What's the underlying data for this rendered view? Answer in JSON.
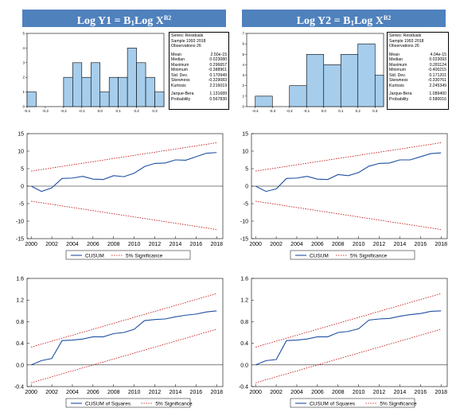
{
  "histograms": [
    {
      "title_prefix": "Log Y1 = B",
      "title_sub": "1",
      "title_mid": "Log X",
      "title_sup": "B2",
      "stats": {
        "header": [
          "Series: Residuals",
          "Sample 1993 2018",
          "Observations 26"
        ],
        "rows": [
          [
            "Mean",
            "2.50e-15"
          ],
          [
            "Median",
            "0.023080"
          ],
          [
            "Maximum",
            "0.296657"
          ],
          [
            "Minimum",
            "-0.388961"
          ],
          [
            "Std. Dev.",
            "0.170949"
          ],
          [
            "Skewness",
            "-0.329083"
          ],
          [
            "Kurtosis",
            "2.216019"
          ]
        ],
        "tail": [
          [
            "Jarque-Bera",
            "1.131689"
          ],
          [
            "Probability",
            "0.567830"
          ]
        ]
      }
    },
    {
      "title_prefix": "Log Y2 = B",
      "title_sub": "1",
      "title_mid": "Log X",
      "title_sup": "B2",
      "stats": {
        "header": [
          "Series: Residuals",
          "Sample 1993 2018",
          "Observations 26"
        ],
        "rows": [
          [
            "Mean",
            "4.04e-15"
          ],
          [
            "Median",
            "0.023093"
          ],
          [
            "Maximum",
            "0.281124"
          ],
          [
            "Minimum",
            "-0.400215"
          ],
          [
            "Std. Dev.",
            "0.171201"
          ],
          [
            "Skewness",
            "-0.330761"
          ],
          [
            "Kurtosis",
            "2.245349"
          ]
        ],
        "tail": [
          [
            "Jarque-Bera",
            "1.089400"
          ],
          [
            "Probability",
            "0.580016"
          ]
        ]
      }
    }
  ],
  "legends": {
    "cusum": "CUSUM",
    "cusumsq": "CUSUM of Squares",
    "sig": "5% Significance"
  },
  "colors": {
    "title_bg": "#4f81bd",
    "bar_fill": "#a6cdec",
    "line": "#1f4fa3",
    "bound": "#c00000"
  },
  "chart_data": [
    {
      "type": "bar",
      "bin_edges": [
        -0.4,
        -0.35,
        -0.3,
        -0.25,
        -0.2,
        -0.15,
        -0.1,
        -0.05,
        0.0,
        0.05,
        0.1,
        0.15,
        0.2,
        0.25,
        0.3
      ],
      "values": [
        1,
        0,
        0,
        0,
        2,
        3,
        2,
        3,
        1,
        2,
        2,
        4,
        3,
        2,
        1
      ],
      "xticks": [
        "-0.4",
        "-0.3",
        "-0.2",
        "-0.1",
        "0.0",
        "0.1",
        "0.2",
        "0.3"
      ],
      "xtick_values": [
        -0.4,
        -0.3,
        -0.2,
        -0.1,
        0.0,
        0.1,
        0.2,
        0.3
      ],
      "yticks": [
        "0",
        "1",
        "2",
        "3",
        "4",
        "5"
      ],
      "xlim": [
        -0.4,
        0.35
      ],
      "ylim": [
        0,
        5
      ]
    },
    {
      "type": "bar",
      "bin_edges": [
        -0.4,
        -0.3,
        -0.2,
        -0.1,
        0.0,
        0.1,
        0.2,
        0.3
      ],
      "values": [
        1,
        0,
        2,
        5,
        4,
        5,
        6,
        3
      ],
      "xticks": [
        "-0.4",
        "-0.3",
        "-0.2",
        "-0.1",
        "0.0",
        "0.1",
        "0.2",
        "0.3"
      ],
      "xtick_values": [
        -0.4,
        -0.3,
        -0.2,
        -0.1,
        0.0,
        0.1,
        0.2,
        0.3
      ],
      "yticks": [
        "0",
        "1",
        "2",
        "3",
        "4",
        "5",
        "6",
        "7"
      ],
      "xlim": [
        -0.45,
        0.35
      ],
      "ylim": [
        0,
        7
      ]
    },
    {
      "type": "line",
      "x": [
        2000,
        2001,
        2002,
        2003,
        2004,
        2005,
        2006,
        2007,
        2008,
        2009,
        2010,
        2011,
        2012,
        2013,
        2014,
        2015,
        2016,
        2017,
        2018
      ],
      "series": [
        {
          "name": "CUSUM",
          "values": [
            0,
            -1.5,
            -0.5,
            2.2,
            2.3,
            2.8,
            2.0,
            1.9,
            3.0,
            2.7,
            3.7,
            5.6,
            6.5,
            6.6,
            7.5,
            7.4,
            8.4,
            9.4,
            9.6
          ]
        },
        {
          "name": "5% Significance",
          "values": [
            4.3,
            4.75,
            5.2,
            5.65,
            6.1,
            6.55,
            7.0,
            7.45,
            7.9,
            8.35,
            8.8,
            9.25,
            9.7,
            10.15,
            10.6,
            11.05,
            11.5,
            11.95,
            12.4
          ]
        },
        {
          "name": "5% Significance",
          "values": [
            -4.3,
            -4.75,
            -5.2,
            -5.65,
            -6.1,
            -6.55,
            -7.0,
            -7.45,
            -7.9,
            -8.35,
            -8.8,
            -9.25,
            -9.7,
            -10.15,
            -10.6,
            -11.05,
            -11.5,
            -11.95,
            -12.4
          ]
        }
      ],
      "xticks": [
        "2000",
        "2002",
        "2004",
        "2006",
        "2008",
        "2010",
        "2012",
        "2014",
        "2016",
        "2018"
      ],
      "yticks": [
        "-15",
        "-10",
        "-5",
        "0",
        "5",
        "10",
        "15"
      ],
      "xlim": [
        1999.6,
        2018.6
      ],
      "ylim": [
        -15,
        15
      ]
    },
    {
      "type": "line",
      "x": [
        2000,
        2001,
        2002,
        2003,
        2004,
        2005,
        2006,
        2007,
        2008,
        2009,
        2010,
        2011,
        2012,
        2013,
        2014,
        2015,
        2016,
        2017,
        2018
      ],
      "series": [
        {
          "name": "CUSUM",
          "values": [
            0,
            -1.5,
            -0.8,
            2.2,
            2.3,
            2.8,
            2.0,
            1.9,
            3.3,
            3.0,
            3.9,
            5.7,
            6.5,
            6.6,
            7.5,
            7.5,
            8.4,
            9.3,
            9.5
          ]
        },
        {
          "name": "5% Significance",
          "values": [
            4.3,
            4.75,
            5.2,
            5.65,
            6.1,
            6.55,
            7.0,
            7.45,
            7.9,
            8.35,
            8.8,
            9.25,
            9.7,
            10.15,
            10.6,
            11.05,
            11.5,
            11.95,
            12.4
          ]
        },
        {
          "name": "5% Significance",
          "values": [
            -4.3,
            -4.75,
            -5.2,
            -5.65,
            -6.1,
            -6.55,
            -7.0,
            -7.45,
            -7.9,
            -8.35,
            -8.8,
            -9.25,
            -9.7,
            -10.15,
            -10.6,
            -11.05,
            -11.5,
            -11.95,
            -12.4
          ]
        }
      ],
      "xticks": [
        "2000",
        "2002",
        "2004",
        "2006",
        "2008",
        "2010",
        "2012",
        "2014",
        "2016",
        "2018"
      ],
      "yticks": [
        "-15",
        "-10",
        "-5",
        "0",
        "5",
        "10",
        "15"
      ],
      "xlim": [
        1999.6,
        2018.6
      ],
      "ylim": [
        -15,
        15
      ]
    },
    {
      "type": "line",
      "x": [
        2000,
        2001,
        2002,
        2003,
        2004,
        2005,
        2006,
        2007,
        2008,
        2009,
        2010,
        2011,
        2012,
        2013,
        2014,
        2015,
        2016,
        2017,
        2018
      ],
      "series": [
        {
          "name": "CUSUM of Squares",
          "values": [
            0.0,
            0.08,
            0.12,
            0.45,
            0.46,
            0.48,
            0.52,
            0.52,
            0.58,
            0.6,
            0.66,
            0.82,
            0.84,
            0.85,
            0.89,
            0.92,
            0.94,
            0.98,
            1.0
          ]
        },
        {
          "name": "5% Significance",
          "values": [
            0.33,
            0.385,
            0.44,
            0.495,
            0.55,
            0.605,
            0.66,
            0.715,
            0.77,
            0.825,
            0.88,
            0.935,
            0.99,
            1.045,
            1.1,
            1.155,
            1.21,
            1.265,
            1.32
          ]
        },
        {
          "name": "5% Significance",
          "values": [
            -0.33,
            -0.275,
            -0.22,
            -0.165,
            -0.11,
            -0.055,
            0.0,
            0.055,
            0.11,
            0.165,
            0.22,
            0.275,
            0.33,
            0.385,
            0.44,
            0.495,
            0.55,
            0.605,
            0.66
          ]
        }
      ],
      "xticks": [
        "2000",
        "2002",
        "2004",
        "2006",
        "2008",
        "2010",
        "2012",
        "2014",
        "2016",
        "2018"
      ],
      "yticks": [
        "-0.4",
        "0.0",
        "0.4",
        "0.8",
        "1.2",
        "1.6"
      ],
      "xlim": [
        1999.6,
        2018.6
      ],
      "ylim": [
        -0.4,
        1.6
      ]
    },
    {
      "type": "line",
      "x": [
        2000,
        2001,
        2002,
        2003,
        2004,
        2005,
        2006,
        2007,
        2008,
        2009,
        2010,
        2011,
        2012,
        2013,
        2014,
        2015,
        2016,
        2017,
        2018
      ],
      "series": [
        {
          "name": "CUSUM of Squares",
          "values": [
            0.0,
            0.08,
            0.1,
            0.45,
            0.46,
            0.48,
            0.52,
            0.52,
            0.6,
            0.62,
            0.67,
            0.83,
            0.85,
            0.86,
            0.9,
            0.93,
            0.95,
            0.99,
            1.0
          ]
        },
        {
          "name": "5% Significance",
          "values": [
            0.33,
            0.385,
            0.44,
            0.495,
            0.55,
            0.605,
            0.66,
            0.715,
            0.77,
            0.825,
            0.88,
            0.935,
            0.99,
            1.045,
            1.1,
            1.155,
            1.21,
            1.265,
            1.32
          ]
        },
        {
          "name": "5% Significance",
          "values": [
            -0.33,
            -0.275,
            -0.22,
            -0.165,
            -0.11,
            -0.055,
            0.0,
            0.055,
            0.11,
            0.165,
            0.22,
            0.275,
            0.33,
            0.385,
            0.44,
            0.495,
            0.55,
            0.605,
            0.66
          ]
        }
      ],
      "xticks": [
        "2000",
        "2002",
        "2004",
        "2006",
        "2008",
        "2010",
        "2012",
        "2014",
        "2016",
        "2018"
      ],
      "yticks": [
        "-0.4",
        "0.0",
        "0.4",
        "0.8",
        "1.2",
        "1.6"
      ],
      "xlim": [
        1999.6,
        2018.6
      ],
      "ylim": [
        -0.4,
        1.6
      ]
    }
  ]
}
